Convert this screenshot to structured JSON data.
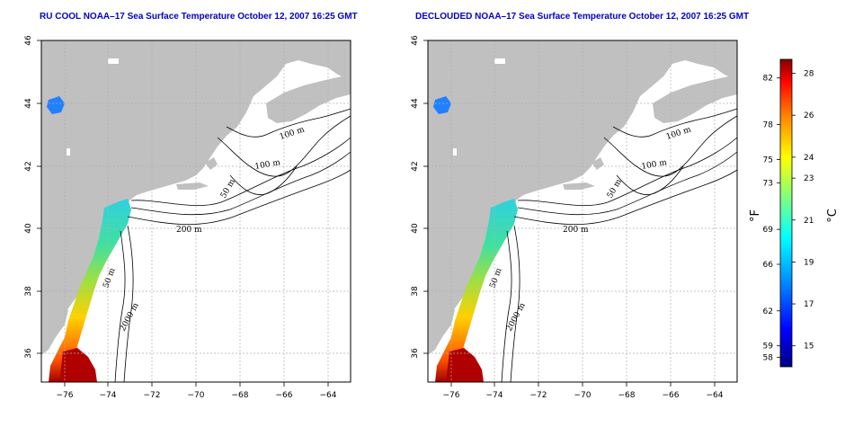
{
  "maps": [
    {
      "title": "RU COOL NOAA–17 Sea Surface Temperature October 12, 2007 16:25 GMT",
      "contour_labels": [
        "100 m",
        "100 m",
        "50 m",
        "200 m",
        "50 m",
        "2000 m"
      ]
    },
    {
      "title": "DECLOUDED NOAA–17 Sea Surface Temperature October 12, 2007 16:25 GMT",
      "contour_labels": [
        "100 m",
        "100 m",
        "50 m",
        "200 m",
        "50 m",
        "2000 m"
      ]
    }
  ],
  "axes": {
    "lon_ticks": [
      "−76",
      "−74",
      "−72",
      "−70",
      "−68",
      "−66",
      "−64"
    ],
    "lat_ticks": [
      "46",
      "44",
      "42",
      "40",
      "38",
      "36"
    ]
  },
  "colorbar": {
    "fahrenheit_label": "°F",
    "celsius_label": "°C",
    "fahrenheit_ticks": [
      "82",
      "78",
      "75",
      "73",
      "69",
      "66",
      "62",
      "59",
      "58"
    ],
    "celsius_ticks": [
      "28",
      "26",
      "24",
      "23",
      "21",
      "19",
      "17",
      "15"
    ]
  },
  "colors": {
    "land": "#c0c0c0",
    "ocean": "#ffffff",
    "title": "#0000cc",
    "grid": "#b0b0b0"
  }
}
